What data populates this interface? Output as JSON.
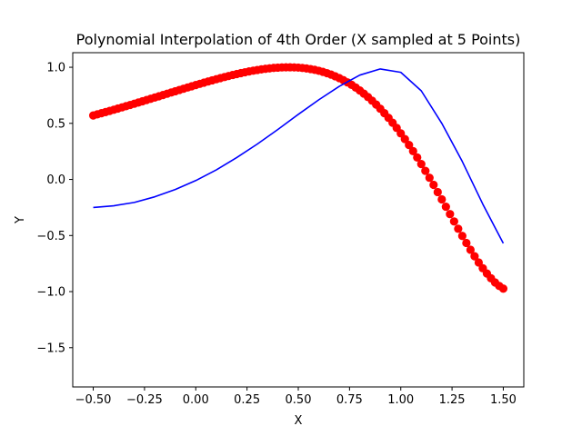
{
  "chart_data": {
    "type": "scatter",
    "title": "Polynomial Interpolation of 4th Order (X sampled at 5 Points)",
    "xlabel": "X",
    "ylabel": "Y",
    "xlim": [
      -0.6,
      1.6
    ],
    "ylim": [
      -1.85,
      1.13
    ],
    "xticks": [
      -0.5,
      -0.25,
      0.0,
      0.25,
      0.5,
      0.75,
      1.0,
      1.25,
      1.5
    ],
    "xtick_labels": [
      "−0.50",
      "−0.25",
      "0.00",
      "0.25",
      "0.50",
      "0.75",
      "1.00",
      "1.25",
      "1.50"
    ],
    "yticks": [
      -1.5,
      -1.0,
      -0.5,
      0.0,
      0.5,
      1.0
    ],
    "ytick_labels": [
      "−1.5",
      "−1.0",
      "−0.5",
      "0.0",
      "0.5",
      "1.0"
    ],
    "grid": false,
    "series": [
      {
        "kind": "scatter",
        "color": "#ff0000",
        "x_range": [
          -0.5,
          1.5
        ],
        "n_points": 101,
        "function": "sin(exp(x))"
      },
      {
        "kind": "line",
        "color": "#0000ff",
        "x": [
          -0.5,
          -0.4,
          -0.3,
          -0.2,
          -0.1,
          0.0,
          0.1,
          0.2,
          0.3,
          0.4,
          0.5,
          0.6,
          0.7,
          0.8,
          0.9,
          1.0,
          1.1,
          1.2,
          1.3,
          1.4,
          1.5
        ],
        "y": [
          -0.25,
          -0.235,
          -0.205,
          -0.155,
          -0.09,
          -0.01,
          0.085,
          0.195,
          0.315,
          0.445,
          0.58,
          0.71,
          0.83,
          0.93,
          0.985,
          0.955,
          0.79,
          0.5,
          0.16,
          -0.22,
          -0.57
        ]
      }
    ]
  }
}
